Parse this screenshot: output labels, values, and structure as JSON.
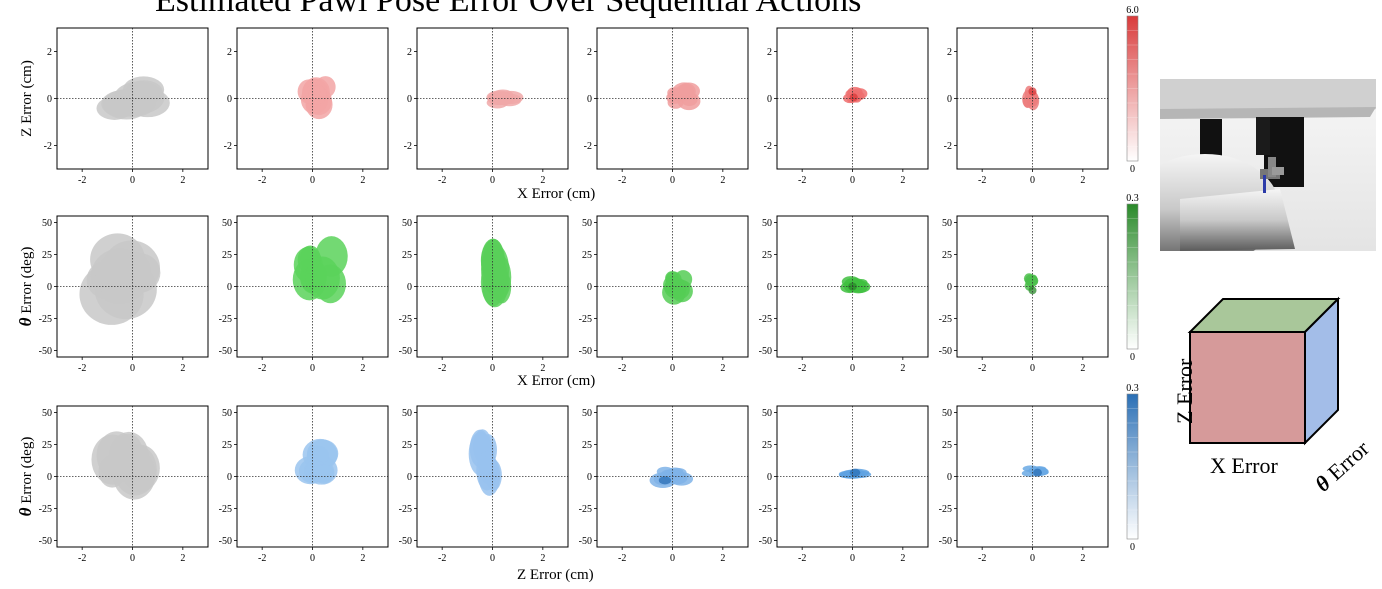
{
  "title": "Estimated Pawl Pose Error Over Sequential Actions",
  "rows": [
    {
      "ylabel_symbol": "",
      "ylabel_text": "Z  Error  (cm)",
      "xlabel": "X Error (cm)",
      "yticks": [
        2,
        0,
        -2
      ],
      "yticklabels": [
        "2",
        "0",
        "-2"
      ],
      "colorbar": {
        "max_label": "6.0",
        "min_label": "0",
        "color": "#d93a3a"
      }
    },
    {
      "ylabel_symbol": "θ",
      "ylabel_text": " Error  (deg)",
      "xlabel": "X Error (cm)",
      "yticks": [
        50,
        25,
        0,
        -25,
        -50
      ],
      "yticklabels": [
        "50",
        "25",
        "0",
        "-25",
        "-50"
      ],
      "colorbar": {
        "max_label": "0.3",
        "min_label": "0",
        "color": "#2a8a2a"
      }
    },
    {
      "ylabel_symbol": "θ",
      "ylabel_text": " Error  (deg)",
      "xlabel": "Z Error (cm)",
      "yticks": [
        50,
        25,
        0,
        -25,
        -50
      ],
      "yticklabels": [
        "50",
        "25",
        "0",
        "-25",
        "-50"
      ],
      "colorbar": {
        "max_label": "0.3",
        "min_label": "0",
        "color": "#2a6fb5"
      }
    }
  ],
  "xticklabels": [
    "-2",
    "0",
    "2"
  ],
  "cube": {
    "z_label": "Z Error",
    "x_label": "X Error",
    "theta_symbol": "θ",
    "theta_text": " Error"
  },
  "chart_data": [
    {
      "type": "heatmap",
      "row": "Z Error vs X Error",
      "xlabel": "X Error (cm)",
      "ylabel": "Z Error (cm)",
      "xlim": [
        -3,
        3
      ],
      "ylim": [
        -3,
        3
      ],
      "colorbar_range": [
        0,
        6.0
      ],
      "panels": [
        {
          "color": "#c8c8c8",
          "centroid": [
            0.0,
            0.0
          ],
          "spread": [
            1.3,
            0.9
          ]
        },
        {
          "color": "#f2a5a5",
          "centroid": [
            0.2,
            0.1
          ],
          "spread": [
            0.7,
            0.8
          ]
        },
        {
          "color": "#f0a8a8",
          "centroid": [
            0.4,
            0.0
          ],
          "spread": [
            0.7,
            0.4
          ]
        },
        {
          "color": "#f09e9e",
          "centroid": [
            0.4,
            0.1
          ],
          "spread": [
            0.6,
            0.5
          ]
        },
        {
          "color": "#ee6f6f",
          "centroid": [
            0.1,
            0.1
          ],
          "spread": [
            0.4,
            0.3
          ],
          "peak": [
            0.05,
            0.05
          ]
        },
        {
          "color": "#ec7c7c",
          "centroid": [
            -0.1,
            0.1
          ],
          "spread": [
            0.3,
            0.5
          ],
          "peak": [
            0.0,
            0.3
          ]
        }
      ]
    },
    {
      "type": "heatmap",
      "row": "θ Error vs X Error",
      "xlabel": "X Error (cm)",
      "ylabel": "θ Error (deg)",
      "xlim": [
        -3,
        3
      ],
      "ylim": [
        -55,
        55
      ],
      "colorbar_range": [
        0,
        0.3
      ],
      "panels": [
        {
          "color": "#c8c8c8",
          "centroid": [
            -0.5,
            10
          ],
          "spread": [
            1.6,
            30
          ]
        },
        {
          "color": "#5bd25b",
          "centroid": [
            0.3,
            12
          ],
          "spread": [
            0.9,
            22
          ]
        },
        {
          "color": "#59cf59",
          "centroid": [
            0.3,
            12
          ],
          "spread": [
            0.7,
            25
          ]
        },
        {
          "color": "#55cc55",
          "centroid": [
            0.1,
            0
          ],
          "spread": [
            0.6,
            12
          ]
        },
        {
          "color": "#3fbf3f",
          "centroid": [
            0.1,
            2
          ],
          "spread": [
            0.5,
            6
          ],
          "peak": [
            0.0,
            0
          ]
        },
        {
          "color": "#4cc04c",
          "centroid": [
            -0.1,
            3
          ],
          "spread": [
            0.3,
            6
          ],
          "peak": [
            0.0,
            -3
          ]
        }
      ]
    },
    {
      "type": "heatmap",
      "row": "θ Error vs Z Error",
      "xlabel": "Z Error (cm)",
      "ylabel": "θ Error (deg)",
      "xlim": [
        -3,
        3
      ],
      "ylim": [
        -55,
        55
      ],
      "colorbar_range": [
        0,
        0.3
      ],
      "panels": [
        {
          "color": "#c8c8c8",
          "centroid": [
            -0.3,
            8
          ],
          "spread": [
            1.2,
            28
          ]
        },
        {
          "color": "#9ac4ef",
          "centroid": [
            0.0,
            10
          ],
          "spread": [
            0.9,
            16
          ]
        },
        {
          "color": "#98c2ee",
          "centroid": [
            -0.2,
            12
          ],
          "spread": [
            0.6,
            22
          ]
        },
        {
          "color": "#7fb3e8",
          "centroid": [
            0.0,
            0
          ],
          "spread": [
            0.7,
            8
          ],
          "peak": [
            -0.3,
            -3
          ]
        },
        {
          "color": "#5ea2e2",
          "centroid": [
            0.1,
            3
          ],
          "spread": [
            0.6,
            4
          ],
          "peak": [
            0.1,
            3
          ]
        },
        {
          "color": "#6aa9e4",
          "centroid": [
            0.1,
            4
          ],
          "spread": [
            0.5,
            4
          ],
          "peak": [
            0.2,
            3
          ]
        }
      ]
    }
  ]
}
